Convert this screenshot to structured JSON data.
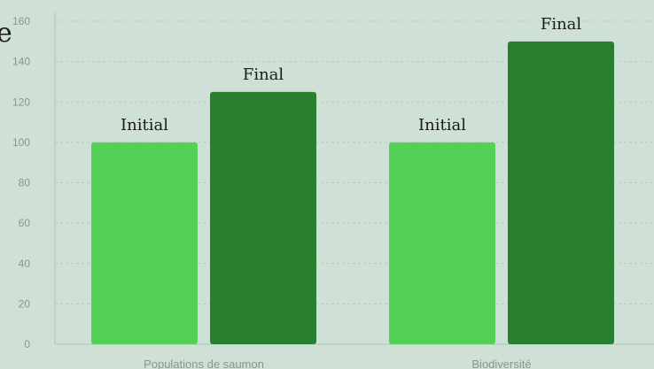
{
  "title_fragment": "e",
  "chart_data": {
    "type": "bar",
    "categories": [
      "Populations de saumon",
      "Biodiversité"
    ],
    "series": [
      {
        "label": "Initial",
        "values": [
          100,
          100
        ],
        "color": "#52d156"
      },
      {
        "label": "Final",
        "values": [
          125,
          150
        ],
        "color": "#2b7d2f"
      }
    ],
    "ylim": [
      0,
      160
    ],
    "yticks": [
      0,
      20,
      40,
      60,
      80,
      100,
      120,
      140,
      160
    ],
    "grid": true
  }
}
